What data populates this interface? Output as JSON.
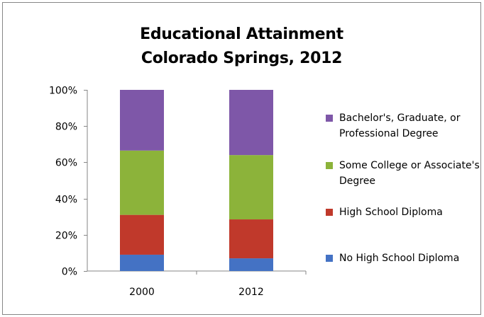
{
  "chart_data": {
    "type": "bar",
    "stacked": true,
    "title": "Educational Attainment\nColorado Springs, 2012",
    "title_lines": [
      "Educational Attainment",
      "Colorado Springs, 2012"
    ],
    "xlabel": "",
    "ylabel": "",
    "ylim": [
      0,
      100
    ],
    "y_ticks": [
      "0%",
      "20%",
      "40%",
      "60%",
      "80%",
      "100%"
    ],
    "y_tick_values": [
      0,
      20,
      40,
      60,
      80,
      100
    ],
    "categories": [
      "2000",
      "2012"
    ],
    "series": [
      {
        "name": "No High School Diploma",
        "values": [
          9,
          7
        ],
        "color": "#4472c4"
      },
      {
        "name": "High School Diploma",
        "values": [
          22,
          21.5
        ],
        "color": "#c0392b"
      },
      {
        "name": "Some College or Associate's Degree",
        "values": [
          35.5,
          35.5
        ],
        "color": "#8cb33a"
      },
      {
        "name": "Bachelor's, Graduate, or Professional Degree",
        "values": [
          33.5,
          36
        ],
        "color": "#7e57a8"
      }
    ],
    "legend_order": [
      3,
      2,
      1,
      0
    ],
    "legend_placement": "right",
    "grid": false
  }
}
